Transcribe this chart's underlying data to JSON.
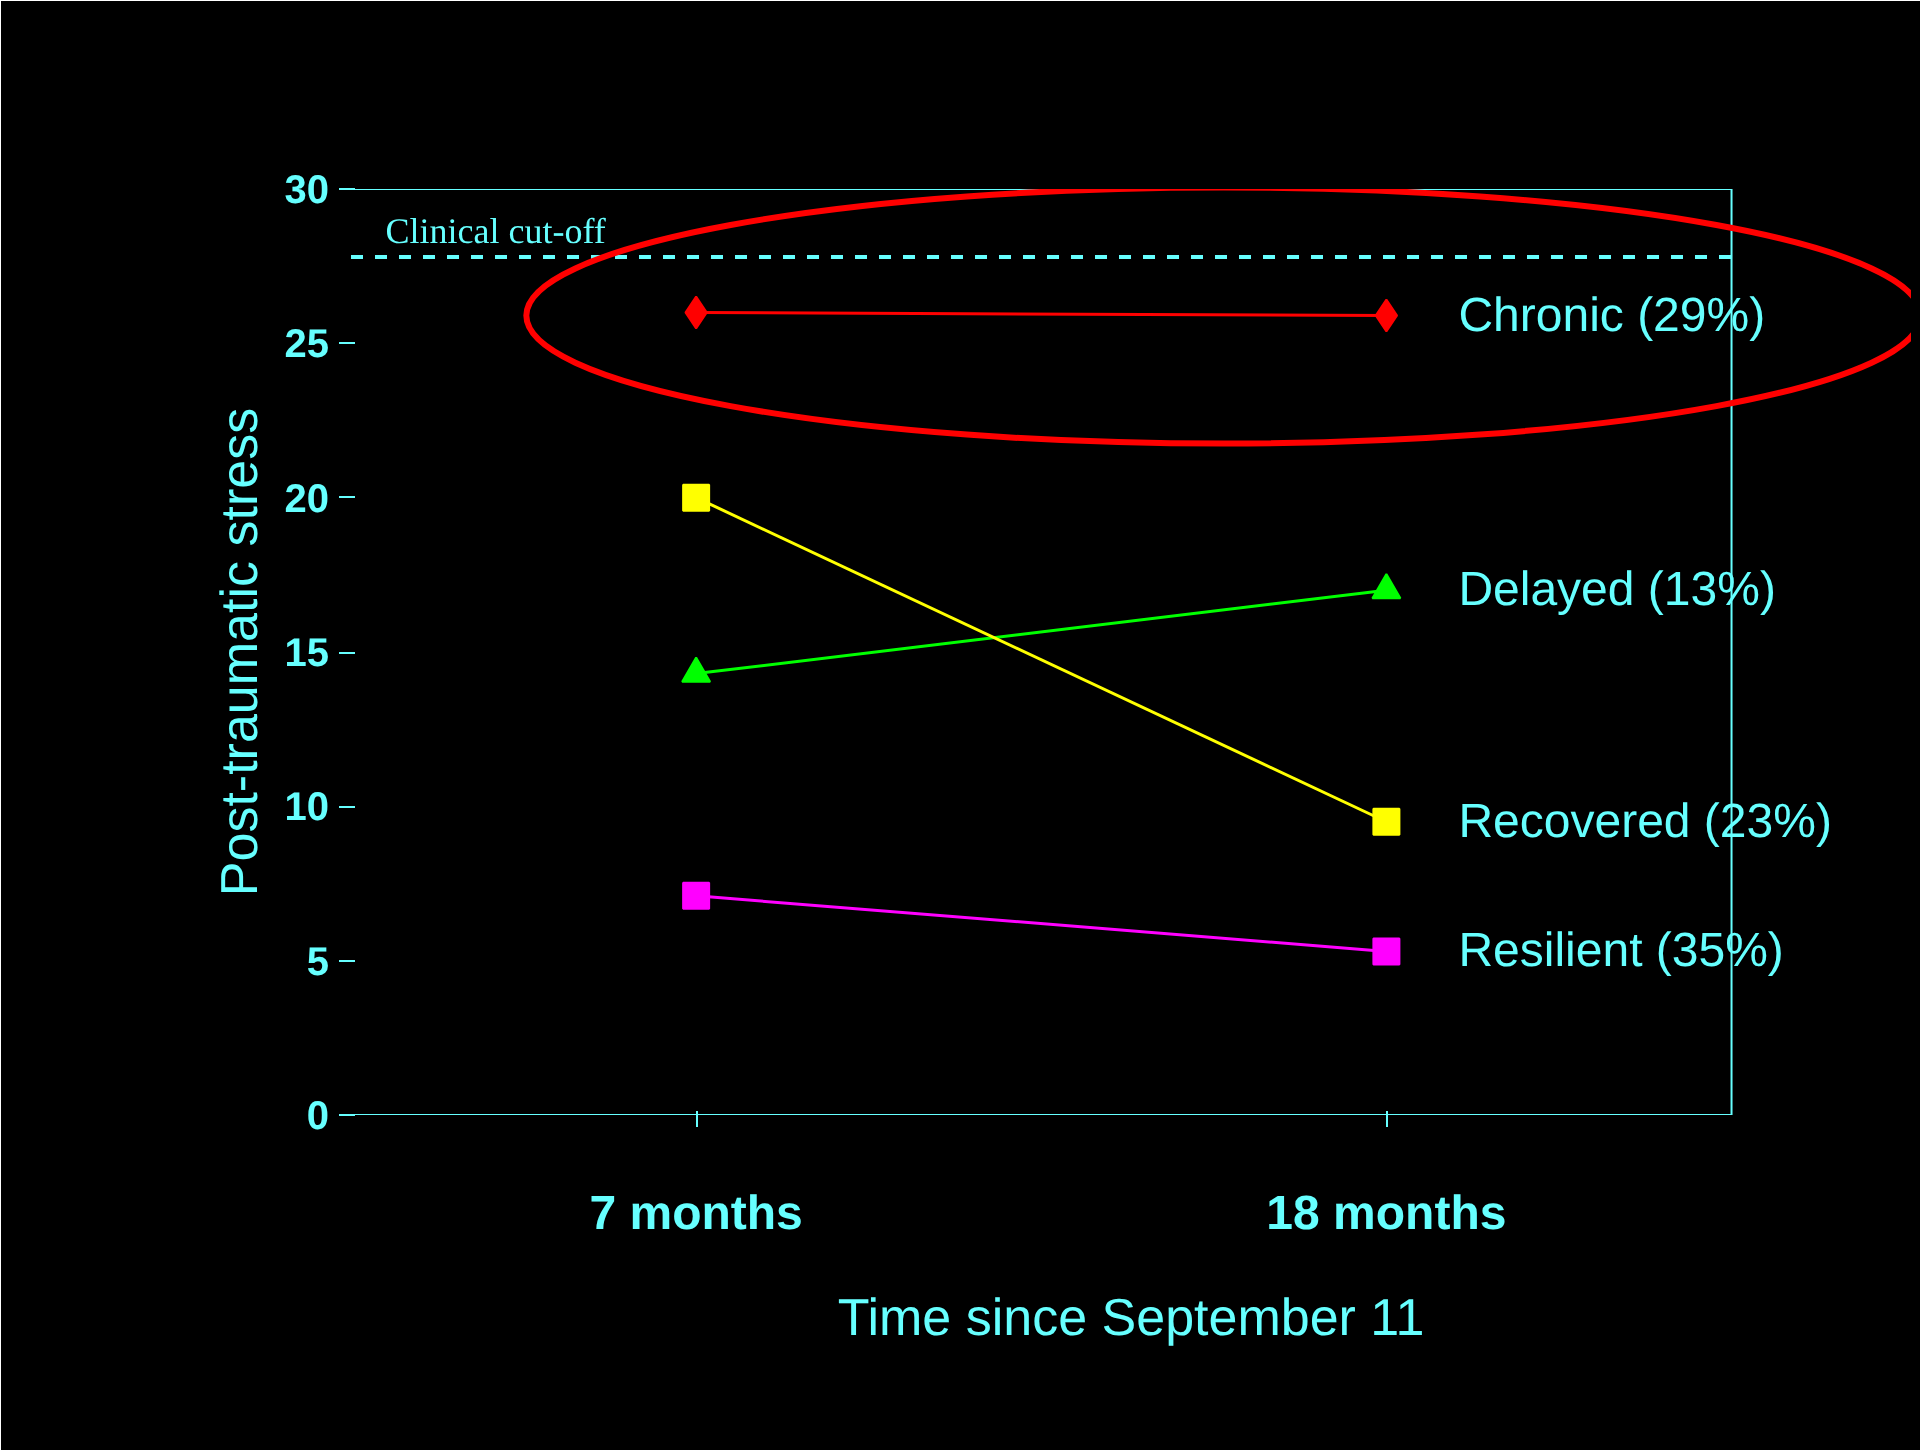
{
  "chart_data": {
    "type": "line",
    "xlabel": "Time since September 11",
    "ylabel": "Post-traumatic stress",
    "categories": [
      "7 months",
      "18 months"
    ],
    "series": [
      {
        "name": "Chronic (29%)",
        "color": "#ff0000",
        "marker": "diamond",
        "values": [
          26.0,
          25.9
        ]
      },
      {
        "name": "Delayed (13%)",
        "color": "#00ff00",
        "marker": "triangle",
        "values": [
          14.3,
          17.0
        ]
      },
      {
        "name": "Recovered (23%)",
        "color": "#ffff00",
        "marker": "square",
        "values": [
          20.0,
          9.5
        ]
      },
      {
        "name": "Resilient (35%)",
        "color": "#ff00ff",
        "marker": "square",
        "values": [
          7.1,
          5.3
        ]
      }
    ],
    "ylim": [
      0,
      30
    ],
    "yticks": [
      0,
      5,
      10,
      15,
      20,
      25,
      30
    ],
    "ref_lines": [
      {
        "axis": "y",
        "value": 27.8,
        "label": "Clinical cut-off",
        "color": "#66ffff",
        "line_style": "dashed"
      }
    ],
    "grid": false
  }
}
